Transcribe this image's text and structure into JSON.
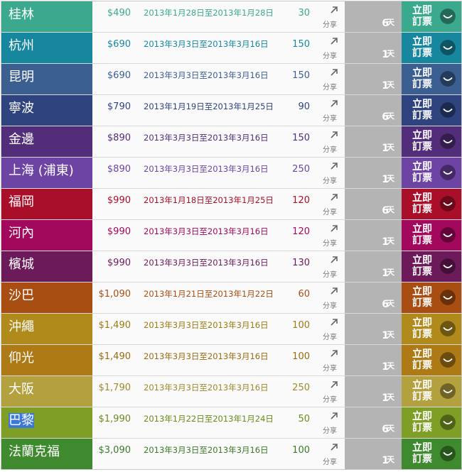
{
  "rows": [
    {
      "city": "桂林",
      "price": "$490",
      "dates": "2013年1月28日至2013年1月28日",
      "qty": "30",
      "share": "分享",
      "days": "6",
      "unit": "天",
      "book": "立即訂票",
      "color": "#3aa98d",
      "text_color": "#3aa98d"
    },
    {
      "city": "杭州",
      "price": "$690",
      "dates": "2013年3月3日至2013年3月16日",
      "qty": "150",
      "share": "分享",
      "days": "1",
      "unit": "天",
      "book": "立即訂票",
      "color": "#16879f",
      "text_color": "#16879f"
    },
    {
      "city": "昆明",
      "price": "$690",
      "dates": "2013年3月3日至2013年3月16日",
      "qty": "150",
      "share": "分享",
      "days": "1",
      "unit": "天",
      "book": "立即訂票",
      "color": "#3c5f92",
      "text_color": "#3c5f92"
    },
    {
      "city": "寧波",
      "price": "$790",
      "dates": "2013年1月19日至2013年1月25日",
      "qty": "90",
      "share": "分享",
      "days": "6",
      "unit": "天",
      "book": "立即訂票",
      "color": "#2f447f",
      "text_color": "#2f447f"
    },
    {
      "city": "金邊",
      "price": "$890",
      "dates": "2013年3月3日至2013年3月16日",
      "qty": "150",
      "share": "分享",
      "days": "1",
      "unit": "天",
      "book": "立即訂票",
      "color": "#522e7a",
      "text_color": "#522e7a"
    },
    {
      "city": "上海 (浦東)",
      "price": "$890",
      "dates": "2013年3月3日至2013年3月16日",
      "qty": "250",
      "share": "分享",
      "days": "1",
      "unit": "天",
      "book": "立即訂票",
      "color": "#6d44a3",
      "text_color": "#6d44a3"
    },
    {
      "city": "福岡",
      "price": "$990",
      "dates": "2013年1月18日至2013年1月25日",
      "qty": "120",
      "share": "分享",
      "days": "6",
      "unit": "天",
      "book": "立即訂票",
      "color": "#aa0f29",
      "text_color": "#aa0f29"
    },
    {
      "city": "河內",
      "price": "$990",
      "dates": "2013年3月3日至2013年3月16日",
      "qty": "120",
      "share": "分享",
      "days": "1",
      "unit": "天",
      "book": "立即訂票",
      "color": "#a2085c",
      "text_color": "#a2085c"
    },
    {
      "city": "檳城",
      "price": "$990",
      "dates": "2013年3月3日至2013年3月16日",
      "qty": "130",
      "share": "分享",
      "days": "1",
      "unit": "天",
      "book": "立即訂票",
      "color": "#6d1a5a",
      "text_color": "#6d1a5a"
    },
    {
      "city": "沙巴",
      "price": "$1,090",
      "dates": "2013年1月21日至2013年1月22日",
      "qty": "60",
      "share": "分享",
      "days": "6",
      "unit": "天",
      "book": "立即訂票",
      "color": "#a84e12",
      "text_color": "#a84e12"
    },
    {
      "city": "沖繩",
      "price": "$1,490",
      "dates": "2013年3月3日至2013年3月16日",
      "qty": "100",
      "share": "分享",
      "days": "1",
      "unit": "天",
      "book": "立即訂票",
      "color": "#b08a1b",
      "text_color": "#9e7a12"
    },
    {
      "city": "仰光",
      "price": "$1,490",
      "dates": "2013年3月3日至2013年3月16日",
      "qty": "100",
      "share": "分享",
      "days": "1",
      "unit": "天",
      "book": "立即訂票",
      "color": "#ad7a16",
      "text_color": "#9a6b10"
    },
    {
      "city": "大阪",
      "price": "$1,790",
      "dates": "2013年3月3日至2013年3月16日",
      "qty": "250",
      "share": "分享",
      "days": "1",
      "unit": "天",
      "book": "立即訂票",
      "color": "#b3a03e",
      "text_color": "#9d8a2a"
    },
    {
      "city": "巴黎",
      "price": "$1,990",
      "dates": "2013年1月22日至2013年1月24日",
      "qty": "50",
      "share": "分享",
      "days": "6",
      "unit": "天",
      "book": "立即訂票",
      "color": "#7e9e26",
      "text_color": "#6c8a1c"
    },
    {
      "city": "法蘭克福",
      "price": "$3,090",
      "dates": "2013年3月3日至2013年3月16日",
      "qty": "100",
      "share": "分享",
      "days": "1",
      "unit": "天",
      "book": "立即訂票",
      "color": "#3f8a2e",
      "text_color": "#3a7a28"
    }
  ],
  "selected_city_index": 13,
  "share_icon": "arrow-up-right-icon",
  "book_icon": "smile-icon"
}
